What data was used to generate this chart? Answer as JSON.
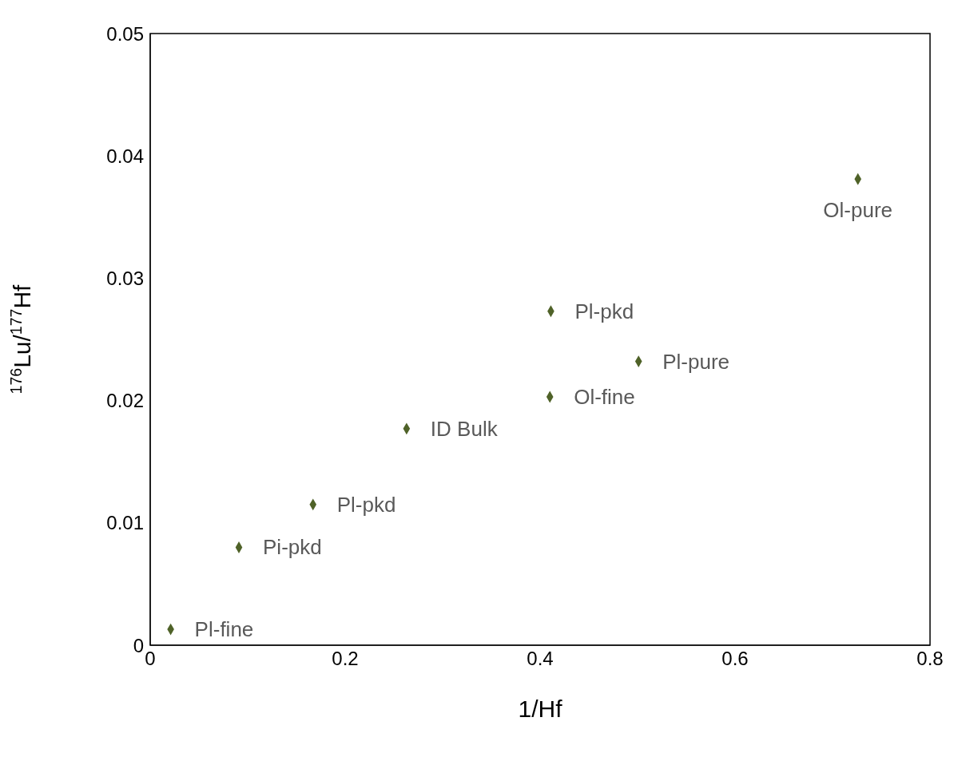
{
  "chart_data": {
    "type": "scatter",
    "xlabel": "1/Hf",
    "ylabel": "$^{176}$Lu/$^{177}$Hf",
    "x": [
      0.021,
      0.091,
      0.167,
      0.263,
      0.41,
      0.411,
      0.501,
      0.726
    ],
    "series": [
      {
        "color": "#4f6228",
        "values": [
          0.0013,
          0.008,
          0.0115,
          0.0177,
          0.0203,
          0.0273,
          0.0232,
          0.0381
        ]
      }
    ],
    "marker": "diamond",
    "grid": false,
    "legend": false,
    "xlim": [
      0,
      0.8
    ],
    "xticks": [
      {
        "value": 0,
        "label": "0"
      },
      {
        "value": 0.2,
        "label": "0.2"
      },
      {
        "value": 0.4,
        "label": "0.4"
      },
      {
        "value": 0.6,
        "label": "0.6"
      },
      {
        "value": 0.8,
        "label": "0.8"
      }
    ],
    "ylim": [
      0,
      0.05
    ],
    "yticks": [
      {
        "value": 0,
        "label": "0"
      },
      {
        "value": 0.01,
        "label": "0.01"
      },
      {
        "value": 0.02,
        "label": "0.02"
      },
      {
        "value": 0.03,
        "label": "0.03"
      },
      {
        "value": 0.04,
        "label": "0.04"
      },
      {
        "value": 0.05,
        "label": "0.05"
      }
    ],
    "annotations": [
      {
        "text": "Pl-fine",
        "x": 0.021,
        "y": 0.0013
      },
      {
        "text": "Pi-pkd",
        "x": 0.091,
        "y": 0.008
      },
      {
        "text": "Pl-pkd",
        "x": 0.167,
        "y": 0.0115
      },
      {
        "text": "ID Bulk",
        "x": 0.263,
        "y": 0.0177
      },
      {
        "text": "Ol-fine",
        "x": 0.41,
        "y": 0.0203
      },
      {
        "text": "Pl-pkd",
        "x": 0.411,
        "y": 0.0273
      },
      {
        "text": "Pl-pure",
        "x": 0.501,
        "y": 0.0232
      },
      {
        "text": "Ol-pure",
        "x": 0.726,
        "y": 0.0381
      }
    ]
  }
}
